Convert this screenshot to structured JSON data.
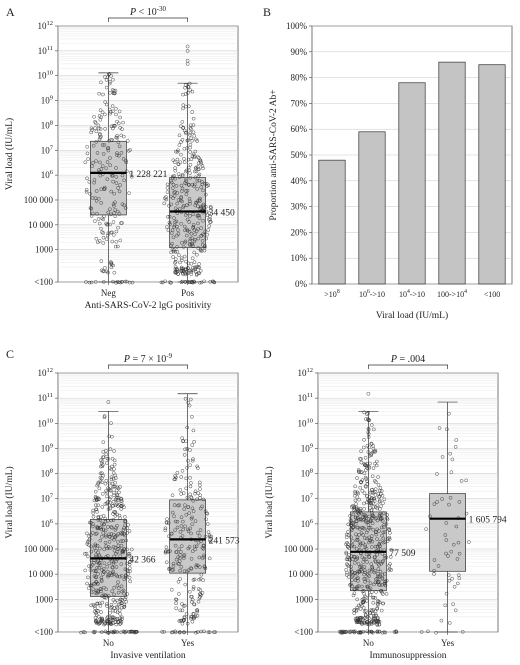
{
  "chart_data": [
    {
      "panel": "A",
      "type": "box",
      "ylabel": "Viral load (IU/mL)",
      "xlabel": "Anti-SARS-CoV-2 lgG positivity",
      "y_scale": "log",
      "y_ticks": [
        "<100",
        "1000",
        "10 000",
        "100 000",
        "10^6",
        "10^7",
        "10^8",
        "10^9",
        "10^10",
        "10^11",
        "10^12"
      ],
      "p_value": "P < 10^-30",
      "groups": [
        {
          "label": "Neg",
          "median": 1228221,
          "median_label": "1 228 221",
          "q1": 25000,
          "q3": 23000000,
          "whisker_low": 50,
          "whisker_high": 13000000000
        },
        {
          "label": "Pos",
          "median": 34450,
          "median_label": "34 450",
          "q1": 1200,
          "q3": 800000,
          "whisker_low": 50,
          "whisker_high": 5000000000,
          "outliers": [
            100000000000,
            150000000000,
            40000000000,
            30000000000
          ]
        }
      ]
    },
    {
      "panel": "B",
      "type": "bar",
      "ylabel": "Proportion anti-SARS-CoV-2 Ab+",
      "xlabel": "Viral load (IU/mL)",
      "ylim": [
        0,
        100
      ],
      "y_ticks": [
        "0%",
        "10%",
        "20%",
        "30%",
        "40%",
        "50%",
        "60%",
        "70%",
        "80%",
        "90%",
        "100%"
      ],
      "categories": [
        ">10^8",
        "10^6->10^8",
        "10^4->10^6",
        "100->10^4",
        "<100"
      ],
      "values": [
        48,
        59,
        78,
        86,
        85
      ]
    },
    {
      "panel": "C",
      "type": "box",
      "ylabel": "Viral load (IU/mL)",
      "xlabel": "Invasive ventilation",
      "y_scale": "log",
      "y_ticks": [
        "<100",
        "1000",
        "10 000",
        "100 000",
        "10^6",
        "10^7",
        "10^8",
        "10^9",
        "10^10",
        "10^11",
        "10^12"
      ],
      "p_value": "P = 7 × 10^-9",
      "groups": [
        {
          "label": "No",
          "median": 42366,
          "median_label": "42 366",
          "q1": 1300,
          "q3": 1500000,
          "whisker_low": 50,
          "whisker_high": 30000000000,
          "outliers": [
            70000000000
          ]
        },
        {
          "label": "Yes",
          "median": 241573,
          "median_label": "241 573",
          "q1": 11000,
          "q3": 9000000,
          "whisker_low": 50,
          "whisker_high": 150000000000
        }
      ]
    },
    {
      "panel": "D",
      "type": "box",
      "ylabel": "Viral load (IU/mL)",
      "xlabel": "Immunosuppression",
      "y_scale": "log",
      "y_ticks": [
        "<100",
        "1000",
        "10 000",
        "100 000",
        "10^6",
        "10^7",
        "10^8",
        "10^9",
        "10^10",
        "10^11",
        "10^12"
      ],
      "p_value": "P = .004",
      "groups": [
        {
          "label": "No",
          "median": 77509,
          "median_label": "77 509",
          "q1": 2200,
          "q3": 3000000,
          "whisker_low": 50,
          "whisker_high": 30000000000,
          "outliers": [
            150000000000
          ]
        },
        {
          "label": "Yes",
          "median": 1605794,
          "median_label": "1 605 794",
          "q1": 13000,
          "q3": 16000000,
          "whisker_low": 50,
          "whisker_high": 70000000000
        }
      ]
    }
  ]
}
